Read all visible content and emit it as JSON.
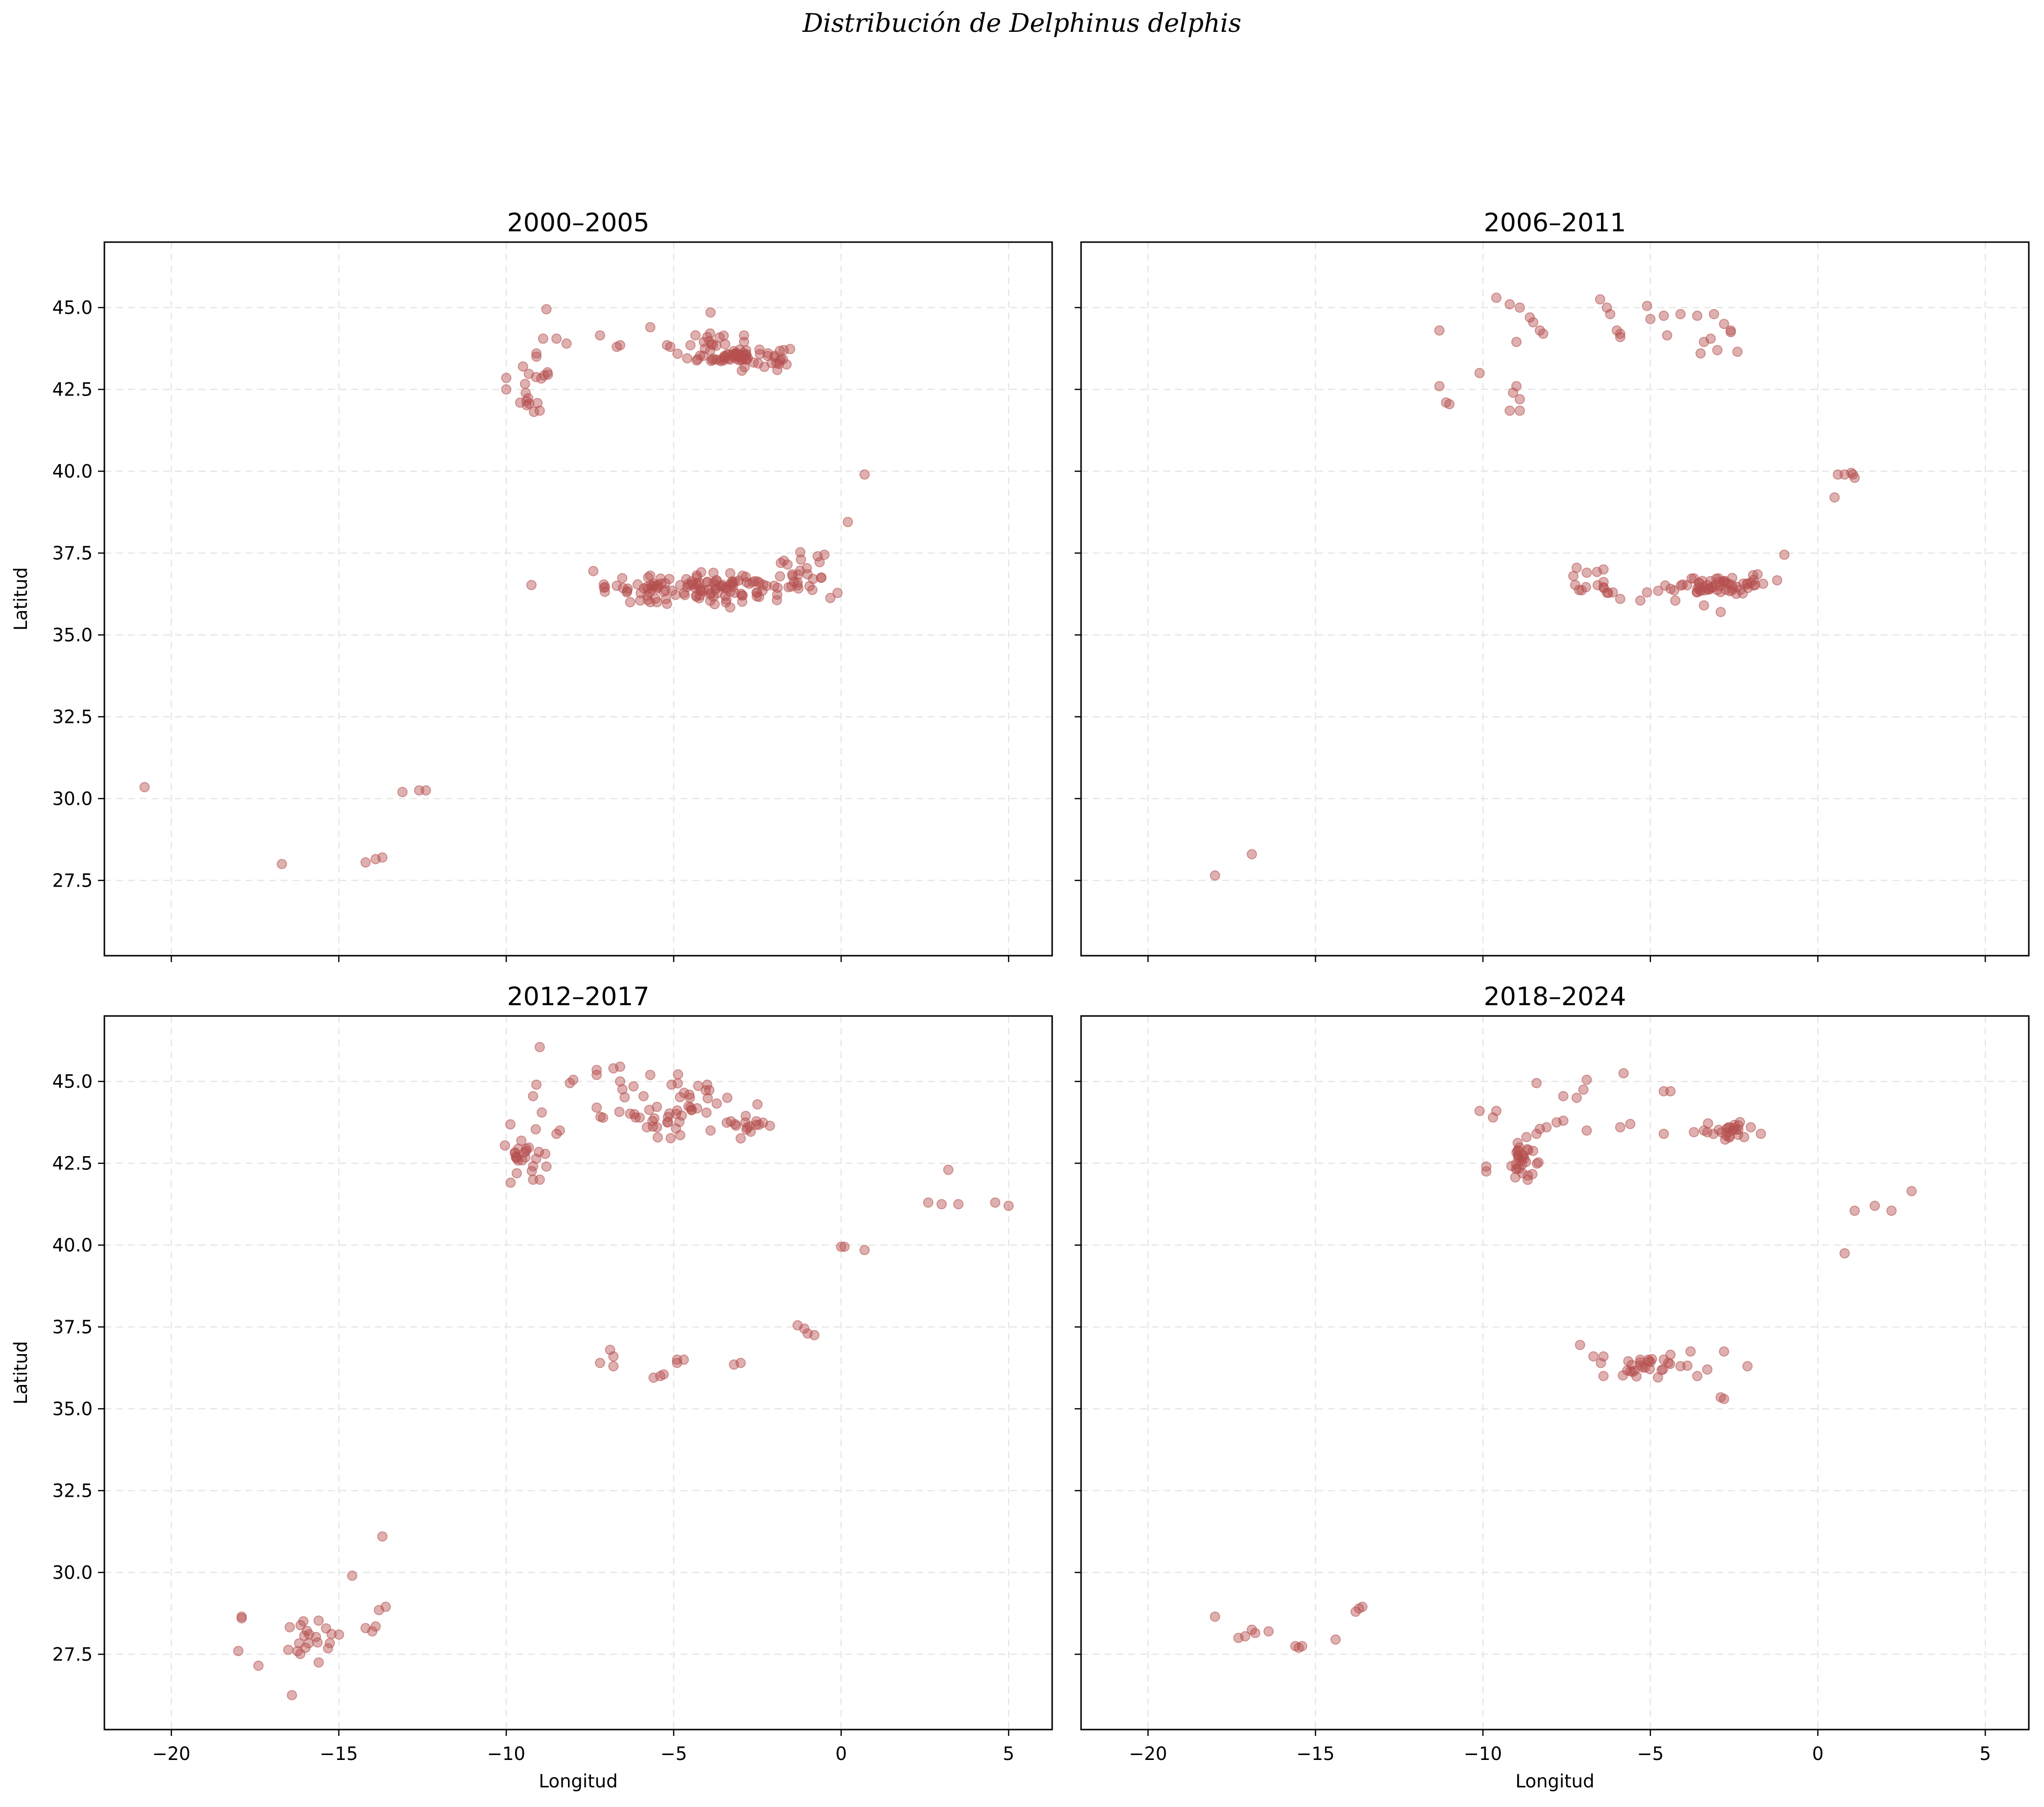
{
  "title": "Distribución de Delphinus delphis",
  "chart_data": [
    {
      "type": "scatter",
      "title": "2000–2005",
      "xlabel": "",
      "ylabel": "Latitud",
      "xlim": [
        -22,
        6.3
      ],
      "ylim": [
        25.2,
        47
      ],
      "xticks": [
        -20,
        -15,
        -10,
        -5,
        0,
        5
      ],
      "yticks": [
        27.5,
        30.0,
        32.5,
        35.0,
        37.5,
        40.0,
        42.5,
        45.0
      ],
      "grid": true,
      "color": "#b5504f",
      "clusters": [
        {
          "cx": -3.0,
          "cy": 43.5,
          "sx": 0.75,
          "sy": 0.15,
          "n": 70
        },
        {
          "cx": -4.0,
          "cy": 36.45,
          "sx": 1.5,
          "sy": 0.2,
          "n": 130
        },
        {
          "cx": -3.8,
          "cy": 43.85,
          "sx": 0.3,
          "sy": 0.2,
          "n": 10
        },
        {
          "cx": -9.2,
          "cy": 42.5,
          "sx": 0.35,
          "sy": 0.3,
          "n": 15
        },
        {
          "cx": -1.2,
          "cy": 37.0,
          "sx": 0.5,
          "sy": 0.25,
          "n": 10
        }
      ],
      "points": [
        [
          -20.8,
          30.35
        ],
        [
          -16.7,
          28.0
        ],
        [
          -14.2,
          28.05
        ],
        [
          -13.9,
          28.15
        ],
        [
          -13.7,
          28.2
        ],
        [
          -13.1,
          30.2
        ],
        [
          -12.6,
          30.25
        ],
        [
          -12.4,
          30.25
        ],
        [
          -8.8,
          44.95
        ],
        [
          -8.5,
          44.05
        ],
        [
          -8.2,
          43.9
        ],
        [
          -8.9,
          44.05
        ],
        [
          -9.1,
          43.6
        ],
        [
          -9.1,
          43.5
        ],
        [
          -9.5,
          43.2
        ],
        [
          -9.0,
          41.85
        ],
        [
          -10.0,
          42.85
        ],
        [
          -10.0,
          42.5
        ],
        [
          -7.2,
          44.15
        ],
        [
          -6.6,
          43.85
        ],
        [
          -6.7,
          43.8
        ],
        [
          -5.7,
          44.4
        ],
        [
          -5.2,
          43.85
        ],
        [
          -5.1,
          43.8
        ],
        [
          -4.0,
          44.1
        ],
        [
          -4.1,
          43.95
        ],
        [
          -3.9,
          44.85
        ],
        [
          -2.9,
          44.15
        ],
        [
          -2.9,
          43.95
        ],
        [
          -4.5,
          43.85
        ],
        [
          -7.4,
          36.95
        ],
        [
          -6.7,
          36.5
        ],
        [
          -6.4,
          36.3
        ],
        [
          -6.3,
          36.0
        ],
        [
          -6.0,
          36.05
        ],
        [
          -5.7,
          36.0
        ],
        [
          -5.5,
          36.0
        ],
        [
          -5.2,
          35.95
        ],
        [
          -0.5,
          37.45
        ],
        [
          -0.7,
          37.4
        ],
        [
          -1.2,
          37.3
        ],
        [
          0.2,
          38.45
        ],
        [
          0.7,
          39.9
        ],
        [
          -1.6,
          37.15
        ],
        [
          -1.0,
          36.85
        ],
        [
          -2.0,
          36.5
        ],
        [
          -1.8,
          37.2
        ],
        [
          -1.3,
          36.6
        ]
      ]
    },
    {
      "type": "scatter",
      "title": "2006–2011",
      "xlabel": "",
      "ylabel": "",
      "xlim": [
        -22,
        6.3
      ],
      "ylim": [
        25.2,
        47
      ],
      "xticks": [
        -20,
        -15,
        -10,
        -5,
        0,
        5
      ],
      "yticks": [
        27.5,
        30.0,
        32.5,
        35.0,
        37.5,
        40.0,
        42.5,
        45.0
      ],
      "grid": true,
      "color": "#b5504f",
      "clusters": [
        {
          "cx": -3.0,
          "cy": 36.5,
          "sx": 0.7,
          "sy": 0.15,
          "n": 60
        },
        {
          "cx": -6.6,
          "cy": 36.5,
          "sx": 0.3,
          "sy": 0.2,
          "n": 12
        }
      ],
      "points": [
        [
          -18.0,
          27.65
        ],
        [
          -16.9,
          28.3
        ],
        [
          -11.3,
          44.3
        ],
        [
          -11.3,
          42.6
        ],
        [
          -11.1,
          42.1
        ],
        [
          -11.0,
          42.05
        ],
        [
          -10.1,
          43.0
        ],
        [
          -9.6,
          45.3
        ],
        [
          -9.2,
          45.1
        ],
        [
          -8.9,
          45.0
        ],
        [
          -9.0,
          42.6
        ],
        [
          -9.1,
          42.4
        ],
        [
          -8.9,
          42.2
        ],
        [
          -9.2,
          41.85
        ],
        [
          -8.9,
          41.85
        ],
        [
          -9.0,
          43.95
        ],
        [
          -8.6,
          44.7
        ],
        [
          -8.5,
          44.55
        ],
        [
          -8.3,
          44.3
        ],
        [
          -8.2,
          44.2
        ],
        [
          -6.5,
          45.25
        ],
        [
          -6.3,
          45.0
        ],
        [
          -6.2,
          44.8
        ],
        [
          -6.0,
          44.3
        ],
        [
          -5.9,
          44.1
        ],
        [
          -5.9,
          44.2
        ],
        [
          -5.1,
          45.05
        ],
        [
          -5.0,
          44.65
        ],
        [
          -4.6,
          44.75
        ],
        [
          -4.5,
          44.15
        ],
        [
          -4.1,
          44.8
        ],
        [
          -3.6,
          44.75
        ],
        [
          -3.4,
          43.95
        ],
        [
          -3.5,
          43.6
        ],
        [
          -3.2,
          44.05
        ],
        [
          -3.1,
          44.8
        ],
        [
          -2.8,
          44.5
        ],
        [
          -2.6,
          44.3
        ],
        [
          -2.4,
          43.65
        ],
        [
          -3.0,
          43.7
        ],
        [
          -2.6,
          44.25
        ],
        [
          -6.4,
          37.0
        ],
        [
          -6.9,
          36.9
        ],
        [
          -7.2,
          37.05
        ],
        [
          -5.9,
          36.1
        ],
        [
          -5.3,
          36.05
        ],
        [
          -5.1,
          36.3
        ],
        [
          -3.4,
          35.9
        ],
        [
          -2.9,
          35.7
        ],
        [
          -2.0,
          36.6
        ],
        [
          -1.8,
          36.85
        ],
        [
          -1.0,
          37.45
        ],
        [
          0.5,
          39.2
        ],
        [
          0.6,
          39.9
        ],
        [
          0.8,
          39.9
        ],
        [
          1.0,
          39.95
        ],
        [
          1.1,
          39.8
        ],
        [
          1.05,
          39.9
        ],
        [
          -7.3,
          36.8
        ]
      ]
    },
    {
      "type": "scatter",
      "title": "2012–2017",
      "xlabel": "Longitud",
      "ylabel": "Latitud",
      "xlim": [
        -22,
        6.3
      ],
      "ylim": [
        25.2,
        47
      ],
      "xticks": [
        -20,
        -15,
        -10,
        -5,
        0,
        5
      ],
      "yticks": [
        27.5,
        30.0,
        32.5,
        35.0,
        37.5,
        40.0,
        42.5,
        45.0
      ],
      "grid": true,
      "color": "#b5504f",
      "clusters": [
        {
          "cx": -4.8,
          "cy": 44.2,
          "sx": 1.2,
          "sy": 0.5,
          "n": 45
        },
        {
          "cx": -9.5,
          "cy": 42.9,
          "sx": 0.3,
          "sy": 0.45,
          "n": 25
        },
        {
          "cx": -2.9,
          "cy": 43.6,
          "sx": 0.35,
          "sy": 0.2,
          "n": 15
        },
        {
          "cx": -15.8,
          "cy": 27.9,
          "sx": 0.6,
          "sy": 0.35,
          "n": 20
        }
      ],
      "points": [
        [
          -9.0,
          46.05
        ],
        [
          -9.1,
          44.9
        ],
        [
          -9.2,
          44.55
        ],
        [
          -8.5,
          43.4
        ],
        [
          -8.4,
          43.5
        ],
        [
          -8.0,
          45.05
        ],
        [
          -8.1,
          44.95
        ],
        [
          -7.3,
          45.35
        ],
        [
          -7.3,
          45.2
        ],
        [
          -7.3,
          44.2
        ],
        [
          -6.8,
          45.4
        ],
        [
          -6.6,
          45.45
        ],
        [
          -6.6,
          45.0
        ],
        [
          -6.2,
          44.85
        ],
        [
          -5.9,
          44.55
        ],
        [
          -5.7,
          45.2
        ],
        [
          -5.8,
          43.6
        ],
        [
          -5.5,
          43.6
        ],
        [
          -9.2,
          42.0
        ],
        [
          -9.0,
          42.0
        ],
        [
          -8.8,
          42.4
        ],
        [
          -7.2,
          36.4
        ],
        [
          -6.9,
          36.8
        ],
        [
          -6.8,
          36.6
        ],
        [
          -6.8,
          36.3
        ],
        [
          -5.6,
          35.95
        ],
        [
          -5.4,
          36.0
        ],
        [
          -5.3,
          36.05
        ],
        [
          -4.9,
          36.4
        ],
        [
          -4.7,
          36.5
        ],
        [
          -4.9,
          36.5
        ],
        [
          -3.2,
          36.35
        ],
        [
          -3.0,
          36.4
        ],
        [
          -1.3,
          37.55
        ],
        [
          -1.1,
          37.45
        ],
        [
          -1.0,
          37.3
        ],
        [
          -0.8,
          37.25
        ],
        [
          0.0,
          39.95
        ],
        [
          0.1,
          39.95
        ],
        [
          0.7,
          39.85
        ],
        [
          2.6,
          41.3
        ],
        [
          3.0,
          41.25
        ],
        [
          3.5,
          41.25
        ],
        [
          3.2,
          42.3
        ],
        [
          4.6,
          41.3
        ],
        [
          5.0,
          41.2
        ],
        [
          -17.9,
          28.65
        ],
        [
          -17.9,
          28.6
        ],
        [
          -18.0,
          27.6
        ],
        [
          -17.4,
          27.15
        ],
        [
          -16.4,
          26.25
        ],
        [
          -15.6,
          27.25
        ],
        [
          -14.6,
          29.9
        ],
        [
          -14.2,
          28.3
        ],
        [
          -13.7,
          31.1
        ],
        [
          -13.8,
          28.85
        ],
        [
          -13.6,
          28.95
        ],
        [
          -13.9,
          28.35
        ],
        [
          -14.0,
          28.2
        ],
        [
          -3.4,
          44.5
        ],
        [
          -3.9,
          43.5
        ],
        [
          -2.5,
          44.3
        ],
        [
          -4.0,
          44.9
        ]
      ]
    },
    {
      "type": "scatter",
      "title": "2018–2024",
      "xlabel": "Longitud",
      "ylabel": "",
      "xlim": [
        -22,
        6.3
      ],
      "ylim": [
        25.2,
        47
      ],
      "xticks": [
        -20,
        -15,
        -10,
        -5,
        0,
        5
      ],
      "yticks": [
        27.5,
        30.0,
        32.5,
        35.0,
        37.5,
        40.0,
        42.5,
        45.0
      ],
      "grid": true,
      "color": "#b5504f",
      "clusters": [
        {
          "cx": -2.7,
          "cy": 43.5,
          "sx": 0.35,
          "sy": 0.15,
          "n": 20
        },
        {
          "cx": -8.9,
          "cy": 42.5,
          "sx": 0.2,
          "sy": 0.3,
          "n": 30
        },
        {
          "cx": -5.2,
          "cy": 36.2,
          "sx": 0.55,
          "sy": 0.2,
          "n": 25
        }
      ],
      "points": [
        [
          -10.1,
          44.1
        ],
        [
          -9.6,
          44.1
        ],
        [
          -9.7,
          43.9
        ],
        [
          -9.9,
          42.4
        ],
        [
          -9.9,
          42.25
        ],
        [
          -8.4,
          44.95
        ],
        [
          -7.2,
          44.5
        ],
        [
          -7.0,
          44.75
        ],
        [
          -6.9,
          45.05
        ],
        [
          -6.9,
          43.5
        ],
        [
          -7.6,
          43.8
        ],
        [
          -7.8,
          43.75
        ],
        [
          -8.1,
          43.6
        ],
        [
          -8.3,
          43.55
        ],
        [
          -8.4,
          43.4
        ],
        [
          -8.7,
          43.3
        ],
        [
          -7.6,
          44.55
        ],
        [
          -5.8,
          45.25
        ],
        [
          -5.6,
          43.7
        ],
        [
          -5.9,
          43.6
        ],
        [
          -4.6,
          44.7
        ],
        [
          -4.4,
          44.7
        ],
        [
          -4.6,
          43.4
        ],
        [
          -3.7,
          43.45
        ],
        [
          -3.4,
          43.5
        ],
        [
          -3.3,
          43.45
        ],
        [
          -2.0,
          43.6
        ],
        [
          -1.7,
          43.4
        ],
        [
          -2.2,
          43.3
        ],
        [
          -7.1,
          36.95
        ],
        [
          -6.7,
          36.6
        ],
        [
          -6.4,
          36.6
        ],
        [
          -6.4,
          36.0
        ],
        [
          -4.6,
          36.5
        ],
        [
          -4.4,
          36.65
        ],
        [
          -3.8,
          36.75
        ],
        [
          -3.6,
          36.0
        ],
        [
          -3.3,
          36.2
        ],
        [
          -2.8,
          36.75
        ],
        [
          -2.9,
          35.35
        ],
        [
          -2.8,
          35.3
        ],
        [
          -2.1,
          36.3
        ],
        [
          -4.1,
          36.3
        ],
        [
          0.8,
          39.75
        ],
        [
          1.1,
          41.05
        ],
        [
          1.7,
          41.2
        ],
        [
          2.2,
          41.05
        ],
        [
          2.8,
          41.65
        ],
        [
          -18.0,
          28.65
        ],
        [
          -17.3,
          28.0
        ],
        [
          -17.1,
          28.05
        ],
        [
          -16.9,
          28.25
        ],
        [
          -16.8,
          28.15
        ],
        [
          -16.4,
          28.2
        ],
        [
          -15.6,
          27.75
        ],
        [
          -15.4,
          27.75
        ],
        [
          -15.5,
          27.7
        ],
        [
          -14.4,
          27.95
        ],
        [
          -13.8,
          28.8
        ],
        [
          -13.6,
          28.95
        ],
        [
          -13.7,
          28.9
        ]
      ]
    }
  ]
}
